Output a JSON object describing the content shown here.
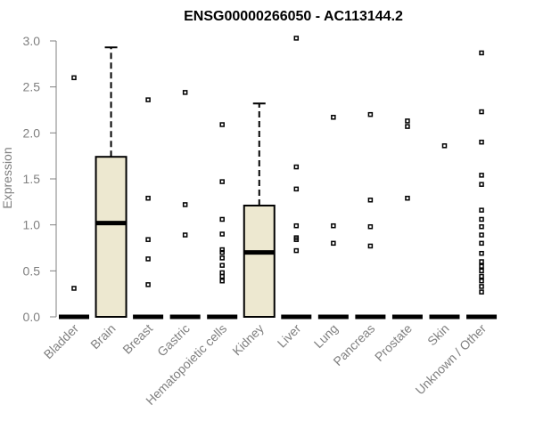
{
  "chart_data": {
    "type": "boxplot",
    "title": "ENSG00000266050 - AC113144.2",
    "xlabel": "",
    "ylabel": "Expression",
    "ylim": [
      0,
      3.0
    ],
    "yticks": [
      "0.0",
      "0.5",
      "1.0",
      "1.5",
      "2.0",
      "2.5",
      "3.0"
    ],
    "grid": false,
    "box_fill": "#ede8d0",
    "categories": [
      "Bladder",
      "Brain",
      "Breast",
      "Gastric",
      "Hematopoietic cells",
      "Kidney",
      "Liver",
      "Lung",
      "Pancreas",
      "Prostate",
      "Skin",
      "Unknown / Other"
    ],
    "boxes": [
      {
        "category": "Bladder",
        "q1": 0,
        "median": 0,
        "q3": 0,
        "whisker_low": 0,
        "whisker_high": 0,
        "outliers": [
          0.31,
          2.6
        ]
      },
      {
        "category": "Brain",
        "q1": 0,
        "median": 1.02,
        "q3": 1.74,
        "whisker_low": 0,
        "whisker_high": 2.93,
        "outliers": []
      },
      {
        "category": "Breast",
        "q1": 0,
        "median": 0,
        "q3": 0,
        "whisker_low": 0,
        "whisker_high": 0,
        "outliers": [
          0.35,
          0.63,
          0.84,
          1.29,
          2.36
        ]
      },
      {
        "category": "Gastric",
        "q1": 0,
        "median": 0,
        "q3": 0,
        "whisker_low": 0,
        "whisker_high": 0,
        "outliers": [
          0.89,
          1.22,
          2.44
        ]
      },
      {
        "category": "Hematopoietic cells",
        "q1": 0,
        "median": 0,
        "q3": 0,
        "whisker_low": 0,
        "whisker_high": 0,
        "outliers": [
          0.39,
          0.44,
          0.48,
          0.56,
          0.64,
          0.7,
          0.73,
          0.9,
          1.06,
          1.47,
          2.09
        ]
      },
      {
        "category": "Kidney",
        "q1": 0,
        "median": 0.7,
        "q3": 1.21,
        "whisker_low": 0,
        "whisker_high": 2.32,
        "outliers": []
      },
      {
        "category": "Liver",
        "q1": 0,
        "median": 0,
        "q3": 0,
        "whisker_low": 0,
        "whisker_high": 0,
        "outliers": [
          0.72,
          0.84,
          0.86,
          0.99,
          1.39,
          1.63,
          3.03
        ]
      },
      {
        "category": "Lung",
        "q1": 0,
        "median": 0,
        "q3": 0,
        "whisker_low": 0,
        "whisker_high": 0,
        "outliers": [
          0.8,
          0.99,
          2.17
        ]
      },
      {
        "category": "Pancreas",
        "q1": 0,
        "median": 0,
        "q3": 0,
        "whisker_low": 0,
        "whisker_high": 0,
        "outliers": [
          0.77,
          0.98,
          1.27,
          2.2
        ]
      },
      {
        "category": "Prostate",
        "q1": 0,
        "median": 0,
        "q3": 0,
        "whisker_low": 0,
        "whisker_high": 0,
        "outliers": [
          1.29,
          2.07,
          2.13
        ]
      },
      {
        "category": "Skin",
        "q1": 0,
        "median": 0,
        "q3": 0,
        "whisker_low": 0,
        "whisker_high": 0,
        "outliers": [
          1.86
        ]
      },
      {
        "category": "Unknown / Other",
        "q1": 0,
        "median": 0,
        "q3": 0,
        "whisker_low": 0,
        "whisker_high": 0,
        "outliers": [
          0.27,
          0.33,
          0.39,
          0.44,
          0.5,
          0.55,
          0.6,
          0.69,
          0.8,
          0.89,
          0.98,
          1.06,
          1.16,
          1.44,
          1.54,
          1.9,
          2.23,
          2.87
        ]
      }
    ]
  }
}
